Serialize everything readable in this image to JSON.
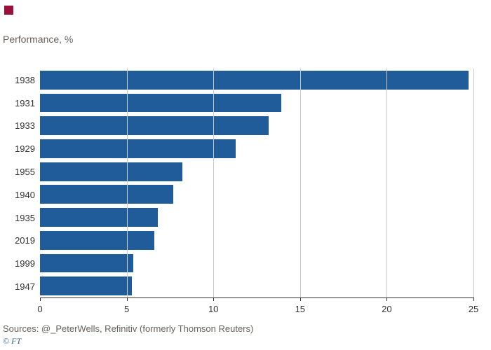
{
  "header": {
    "subtitle": "Performance, %"
  },
  "footer": {
    "sources": "Sources: @_PeterWells, Refinitiv (formerly Thomson Reuters)",
    "credit": "© FT"
  },
  "colors": {
    "bar": "#1f5c99",
    "grid": "#c9c9c9",
    "axis": "#333333",
    "marker_red": "#990f3d",
    "text_gray": "#66605c",
    "credit_blue": "#33608c"
  },
  "chart_data": {
    "type": "bar",
    "orientation": "horizontal",
    "title": "",
    "axis_label": "Performance, %",
    "categories": [
      "1938",
      "1931",
      "1933",
      "1929",
      "1955",
      "1940",
      "1935",
      "2019",
      "1999",
      "1947"
    ],
    "values": [
      24.7,
      13.9,
      13.2,
      11.3,
      8.2,
      7.7,
      6.8,
      6.6,
      5.4,
      5.3
    ],
    "xlim": [
      0,
      25
    ],
    "xticks": [
      0,
      5,
      10,
      15,
      20,
      25
    ],
    "grid": true,
    "legend": false
  }
}
